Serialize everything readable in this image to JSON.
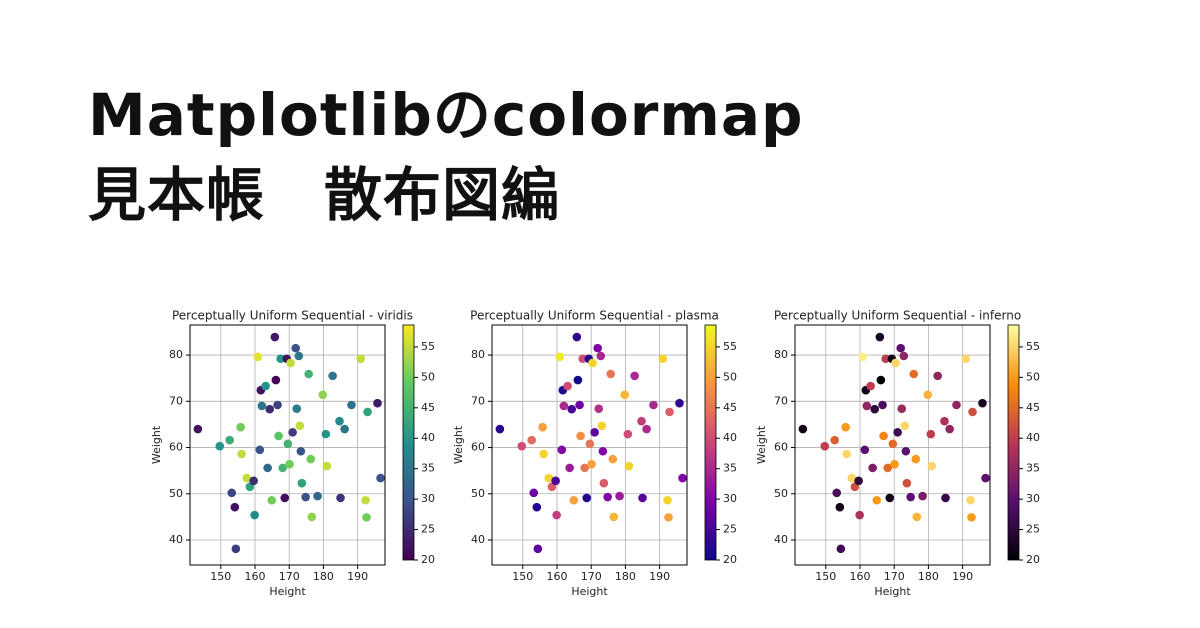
{
  "header": {
    "title_lines": [
      "Matplotlibのcolormap",
      "見本帳　散布図編"
    ]
  },
  "chart_data": [
    {
      "type": "scatter",
      "title": "Perceptually Uniform Sequential - viridis",
      "xlabel": "Height",
      "ylabel": "Weight",
      "colormap": "viridis",
      "x": [
        143.3,
        149.7,
        152.6,
        153.2,
        154.1,
        154.4,
        155.8,
        156.1,
        157.6,
        158.5,
        159.6,
        159.9,
        160.8,
        161.4,
        161.7,
        162.0,
        163.1,
        163.7,
        164.3,
        164.9,
        165.8,
        166.1,
        166.6,
        166.9,
        167.5,
        168.1,
        168.7,
        169.3,
        169.6,
        170.1,
        170.4,
        171.0,
        171.9,
        172.2,
        172.8,
        173.1,
        173.4,
        173.7,
        174.8,
        175.7,
        176.3,
        176.6,
        178.3,
        179.8,
        180.7,
        181.0,
        182.7,
        184.7,
        185.0,
        186.2,
        188.2,
        190.9,
        192.3,
        192.6,
        192.9,
        195.8,
        196.7
      ],
      "y": [
        64.0,
        60.3,
        61.6,
        50.2,
        47.1,
        38.1,
        64.4,
        58.6,
        53.4,
        51.5,
        52.8,
        45.4,
        79.6,
        59.5,
        72.4,
        69.0,
        73.3,
        55.6,
        68.3,
        48.6,
        83.9,
        74.6,
        69.2,
        62.5,
        79.2,
        55.6,
        49.1,
        79.2,
        60.8,
        56.4,
        78.3,
        63.3,
        81.5,
        68.4,
        79.8,
        64.7,
        59.2,
        52.3,
        49.3,
        75.9,
        57.5,
        45.0,
        49.5,
        71.4,
        62.9,
        56.0,
        75.5,
        65.7,
        49.1,
        64.0,
        69.2,
        79.2,
        48.6,
        44.9,
        67.7,
        69.6,
        53.4
      ],
      "c": [
        22,
        40,
        44,
        28,
        22,
        27,
        50,
        55,
        55,
        42,
        25,
        38,
        57,
        30,
        22,
        35,
        40,
        33,
        25,
        50,
        23,
        20,
        28,
        48,
        40,
        45,
        22,
        22,
        45,
        50,
        55,
        27,
        30,
        36,
        35,
        55,
        30,
        42,
        30,
        45,
        50,
        52,
        33,
        52,
        40,
        55,
        35,
        38,
        26,
        35,
        35,
        55,
        55,
        50,
        42,
        23,
        30
      ],
      "xlim": [
        141,
        198
      ],
      "ylim": [
        34.6,
        86.5
      ],
      "xticks": [
        150,
        160,
        170,
        180,
        190
      ],
      "yticks": [
        40,
        50,
        60,
        70,
        80
      ],
      "clim": [
        20,
        58.6
      ],
      "cticks": [
        20,
        25,
        30,
        35,
        40,
        45,
        50,
        55
      ],
      "grid": true
    },
    {
      "type": "scatter",
      "title": "Perceptually Uniform Sequential - plasma",
      "xlabel": "Height",
      "ylabel": "Weight",
      "colormap": "plasma",
      "x": [
        143.3,
        149.7,
        152.6,
        153.2,
        154.1,
        154.4,
        155.8,
        156.1,
        157.6,
        158.5,
        159.6,
        159.9,
        160.8,
        161.4,
        161.7,
        162.0,
        163.1,
        163.7,
        164.3,
        164.9,
        165.8,
        166.1,
        166.6,
        166.9,
        167.5,
        168.1,
        168.7,
        169.3,
        169.6,
        170.1,
        170.4,
        171.0,
        171.9,
        172.2,
        172.8,
        173.1,
        173.4,
        173.7,
        174.8,
        175.7,
        176.3,
        176.6,
        178.3,
        179.8,
        180.7,
        181.0,
        182.7,
        184.7,
        185.0,
        186.2,
        188.2,
        190.9,
        192.3,
        192.6,
        192.9,
        195.8,
        196.7
      ],
      "y": [
        64.0,
        60.3,
        61.6,
        50.2,
        47.1,
        38.1,
        64.4,
        58.6,
        53.4,
        51.5,
        52.8,
        45.4,
        79.6,
        59.5,
        72.4,
        69.0,
        73.3,
        55.6,
        68.3,
        48.6,
        83.9,
        74.6,
        69.2,
        62.5,
        79.2,
        55.6,
        49.1,
        79.2,
        60.8,
        56.4,
        78.3,
        63.3,
        81.5,
        68.4,
        79.8,
        64.7,
        59.2,
        52.3,
        49.3,
        75.9,
        57.5,
        45.0,
        49.5,
        71.4,
        62.9,
        56.0,
        75.5,
        65.7,
        49.1,
        64.0,
        69.2,
        79.2,
        48.6,
        44.9,
        67.7,
        69.6,
        53.4
      ],
      "c": [
        22,
        40,
        44,
        28,
        22,
        27,
        50,
        55,
        55,
        42,
        25,
        38,
        57,
        30,
        22,
        35,
        40,
        33,
        25,
        50,
        23,
        20,
        28,
        48,
        40,
        45,
        22,
        22,
        45,
        50,
        55,
        27,
        30,
        36,
        35,
        55,
        30,
        42,
        30,
        45,
        50,
        52,
        33,
        52,
        40,
        55,
        35,
        38,
        26,
        35,
        35,
        55,
        55,
        50,
        42,
        23,
        30
      ],
      "xlim": [
        141,
        198
      ],
      "ylim": [
        34.6,
        86.5
      ],
      "xticks": [
        150,
        160,
        170,
        180,
        190
      ],
      "yticks": [
        40,
        50,
        60,
        70,
        80
      ],
      "clim": [
        20,
        58.6
      ],
      "cticks": [
        20,
        25,
        30,
        35,
        40,
        45,
        50,
        55
      ],
      "grid": true
    },
    {
      "type": "scatter",
      "title": "Perceptually Uniform Sequential - inferno",
      "xlabel": "Height",
      "ylabel": "Weight",
      "colormap": "inferno",
      "x": [
        143.3,
        149.7,
        152.6,
        153.2,
        154.1,
        154.4,
        155.8,
        156.1,
        157.6,
        158.5,
        159.6,
        159.9,
        160.8,
        161.4,
        161.7,
        162.0,
        163.1,
        163.7,
        164.3,
        164.9,
        165.8,
        166.1,
        166.6,
        166.9,
        167.5,
        168.1,
        168.7,
        169.3,
        169.6,
        170.1,
        170.4,
        171.0,
        171.9,
        172.2,
        172.8,
        173.1,
        173.4,
        173.7,
        174.8,
        175.7,
        176.3,
        176.6,
        178.3,
        179.8,
        180.7,
        181.0,
        182.7,
        184.7,
        185.0,
        186.2,
        188.2,
        190.9,
        192.3,
        192.6,
        192.9,
        195.8,
        196.7
      ],
      "y": [
        64.0,
        60.3,
        61.6,
        50.2,
        47.1,
        38.1,
        64.4,
        58.6,
        53.4,
        51.5,
        52.8,
        45.4,
        79.6,
        59.5,
        72.4,
        69.0,
        73.3,
        55.6,
        68.3,
        48.6,
        83.9,
        74.6,
        69.2,
        62.5,
        79.2,
        55.6,
        49.1,
        79.2,
        60.8,
        56.4,
        78.3,
        63.3,
        81.5,
        68.4,
        79.8,
        64.7,
        59.2,
        52.3,
        49.3,
        75.9,
        57.5,
        45.0,
        49.5,
        71.4,
        62.9,
        56.0,
        75.5,
        65.7,
        49.1,
        64.0,
        69.2,
        79.2,
        48.6,
        44.9,
        67.7,
        69.6,
        53.4
      ],
      "c": [
        22,
        40,
        44,
        28,
        22,
        27,
        50,
        55,
        55,
        42,
        25,
        38,
        57,
        30,
        22,
        35,
        40,
        33,
        25,
        50,
        23,
        20,
        28,
        48,
        40,
        45,
        22,
        22,
        45,
        50,
        55,
        27,
        30,
        36,
        35,
        55,
        30,
        42,
        30,
        45,
        50,
        52,
        33,
        52,
        40,
        55,
        35,
        38,
        26,
        35,
        35,
        55,
        55,
        50,
        42,
        23,
        30
      ],
      "xlim": [
        141,
        198
      ],
      "ylim": [
        34.6,
        86.5
      ],
      "xticks": [
        150,
        160,
        170,
        180,
        190
      ],
      "yticks": [
        40,
        50,
        60,
        70,
        80
      ],
      "clim": [
        20,
        58.6
      ],
      "cticks": [
        20,
        25,
        30,
        35,
        40,
        45,
        50,
        55
      ],
      "grid": true
    }
  ]
}
